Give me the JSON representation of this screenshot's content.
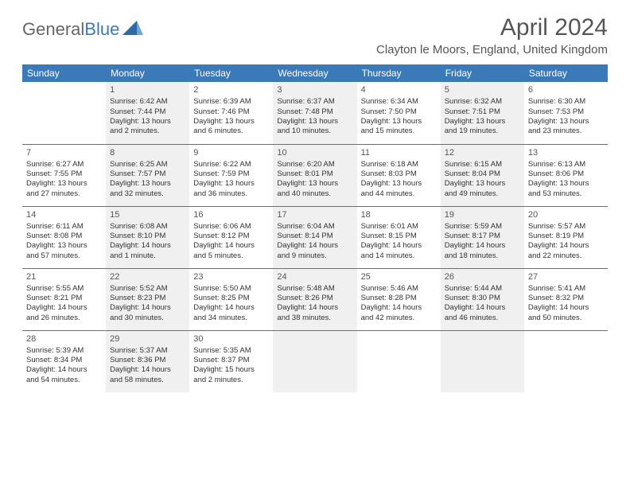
{
  "brand": {
    "part1": "General",
    "part2": "Blue"
  },
  "title": "April 2024",
  "location": "Clayton le Moors, England, United Kingdom",
  "colors": {
    "header_bg": "#3a7ab8",
    "header_text": "#ffffff",
    "shade_bg": "#f0f0f0",
    "rule": "#3a7ab8",
    "body_text": "#333333",
    "title_text": "#555555"
  },
  "dayNames": [
    "Sunday",
    "Monday",
    "Tuesday",
    "Wednesday",
    "Thursday",
    "Friday",
    "Saturday"
  ],
  "weeks": [
    [
      {
        "shaded": false
      },
      {
        "n": "1",
        "shaded": true,
        "sr": "Sunrise: 6:42 AM",
        "ss": "Sunset: 7:44 PM",
        "d1": "Daylight: 13 hours",
        "d2": "and 2 minutes."
      },
      {
        "n": "2",
        "shaded": false,
        "sr": "Sunrise: 6:39 AM",
        "ss": "Sunset: 7:46 PM",
        "d1": "Daylight: 13 hours",
        "d2": "and 6 minutes."
      },
      {
        "n": "3",
        "shaded": true,
        "sr": "Sunrise: 6:37 AM",
        "ss": "Sunset: 7:48 PM",
        "d1": "Daylight: 13 hours",
        "d2": "and 10 minutes."
      },
      {
        "n": "4",
        "shaded": false,
        "sr": "Sunrise: 6:34 AM",
        "ss": "Sunset: 7:50 PM",
        "d1": "Daylight: 13 hours",
        "d2": "and 15 minutes."
      },
      {
        "n": "5",
        "shaded": true,
        "sr": "Sunrise: 6:32 AM",
        "ss": "Sunset: 7:51 PM",
        "d1": "Daylight: 13 hours",
        "d2": "and 19 minutes."
      },
      {
        "n": "6",
        "shaded": false,
        "sr": "Sunrise: 6:30 AM",
        "ss": "Sunset: 7:53 PM",
        "d1": "Daylight: 13 hours",
        "d2": "and 23 minutes."
      }
    ],
    [
      {
        "n": "7",
        "shaded": false,
        "sr": "Sunrise: 6:27 AM",
        "ss": "Sunset: 7:55 PM",
        "d1": "Daylight: 13 hours",
        "d2": "and 27 minutes."
      },
      {
        "n": "8",
        "shaded": true,
        "sr": "Sunrise: 6:25 AM",
        "ss": "Sunset: 7:57 PM",
        "d1": "Daylight: 13 hours",
        "d2": "and 32 minutes."
      },
      {
        "n": "9",
        "shaded": false,
        "sr": "Sunrise: 6:22 AM",
        "ss": "Sunset: 7:59 PM",
        "d1": "Daylight: 13 hours",
        "d2": "and 36 minutes."
      },
      {
        "n": "10",
        "shaded": true,
        "sr": "Sunrise: 6:20 AM",
        "ss": "Sunset: 8:01 PM",
        "d1": "Daylight: 13 hours",
        "d2": "and 40 minutes."
      },
      {
        "n": "11",
        "shaded": false,
        "sr": "Sunrise: 6:18 AM",
        "ss": "Sunset: 8:03 PM",
        "d1": "Daylight: 13 hours",
        "d2": "and 44 minutes."
      },
      {
        "n": "12",
        "shaded": true,
        "sr": "Sunrise: 6:15 AM",
        "ss": "Sunset: 8:04 PM",
        "d1": "Daylight: 13 hours",
        "d2": "and 49 minutes."
      },
      {
        "n": "13",
        "shaded": false,
        "sr": "Sunrise: 6:13 AM",
        "ss": "Sunset: 8:06 PM",
        "d1": "Daylight: 13 hours",
        "d2": "and 53 minutes."
      }
    ],
    [
      {
        "n": "14",
        "shaded": false,
        "sr": "Sunrise: 6:11 AM",
        "ss": "Sunset: 8:08 PM",
        "d1": "Daylight: 13 hours",
        "d2": "and 57 minutes."
      },
      {
        "n": "15",
        "shaded": true,
        "sr": "Sunrise: 6:08 AM",
        "ss": "Sunset: 8:10 PM",
        "d1": "Daylight: 14 hours",
        "d2": "and 1 minute."
      },
      {
        "n": "16",
        "shaded": false,
        "sr": "Sunrise: 6:06 AM",
        "ss": "Sunset: 8:12 PM",
        "d1": "Daylight: 14 hours",
        "d2": "and 5 minutes."
      },
      {
        "n": "17",
        "shaded": true,
        "sr": "Sunrise: 6:04 AM",
        "ss": "Sunset: 8:14 PM",
        "d1": "Daylight: 14 hours",
        "d2": "and 9 minutes."
      },
      {
        "n": "18",
        "shaded": false,
        "sr": "Sunrise: 6:01 AM",
        "ss": "Sunset: 8:15 PM",
        "d1": "Daylight: 14 hours",
        "d2": "and 14 minutes."
      },
      {
        "n": "19",
        "shaded": true,
        "sr": "Sunrise: 5:59 AM",
        "ss": "Sunset: 8:17 PM",
        "d1": "Daylight: 14 hours",
        "d2": "and 18 minutes."
      },
      {
        "n": "20",
        "shaded": false,
        "sr": "Sunrise: 5:57 AM",
        "ss": "Sunset: 8:19 PM",
        "d1": "Daylight: 14 hours",
        "d2": "and 22 minutes."
      }
    ],
    [
      {
        "n": "21",
        "shaded": false,
        "sr": "Sunrise: 5:55 AM",
        "ss": "Sunset: 8:21 PM",
        "d1": "Daylight: 14 hours",
        "d2": "and 26 minutes."
      },
      {
        "n": "22",
        "shaded": true,
        "sr": "Sunrise: 5:52 AM",
        "ss": "Sunset: 8:23 PM",
        "d1": "Daylight: 14 hours",
        "d2": "and 30 minutes."
      },
      {
        "n": "23",
        "shaded": false,
        "sr": "Sunrise: 5:50 AM",
        "ss": "Sunset: 8:25 PM",
        "d1": "Daylight: 14 hours",
        "d2": "and 34 minutes."
      },
      {
        "n": "24",
        "shaded": true,
        "sr": "Sunrise: 5:48 AM",
        "ss": "Sunset: 8:26 PM",
        "d1": "Daylight: 14 hours",
        "d2": "and 38 minutes."
      },
      {
        "n": "25",
        "shaded": false,
        "sr": "Sunrise: 5:46 AM",
        "ss": "Sunset: 8:28 PM",
        "d1": "Daylight: 14 hours",
        "d2": "and 42 minutes."
      },
      {
        "n": "26",
        "shaded": true,
        "sr": "Sunrise: 5:44 AM",
        "ss": "Sunset: 8:30 PM",
        "d1": "Daylight: 14 hours",
        "d2": "and 46 minutes."
      },
      {
        "n": "27",
        "shaded": false,
        "sr": "Sunrise: 5:41 AM",
        "ss": "Sunset: 8:32 PM",
        "d1": "Daylight: 14 hours",
        "d2": "and 50 minutes."
      }
    ],
    [
      {
        "n": "28",
        "shaded": false,
        "sr": "Sunrise: 5:39 AM",
        "ss": "Sunset: 8:34 PM",
        "d1": "Daylight: 14 hours",
        "d2": "and 54 minutes."
      },
      {
        "n": "29",
        "shaded": true,
        "sr": "Sunrise: 5:37 AM",
        "ss": "Sunset: 8:36 PM",
        "d1": "Daylight: 14 hours",
        "d2": "and 58 minutes."
      },
      {
        "n": "30",
        "shaded": false,
        "sr": "Sunrise: 5:35 AM",
        "ss": "Sunset: 8:37 PM",
        "d1": "Daylight: 15 hours",
        "d2": "and 2 minutes."
      },
      {
        "shaded": true
      },
      {
        "shaded": false
      },
      {
        "shaded": true
      },
      {
        "shaded": false
      }
    ]
  ]
}
